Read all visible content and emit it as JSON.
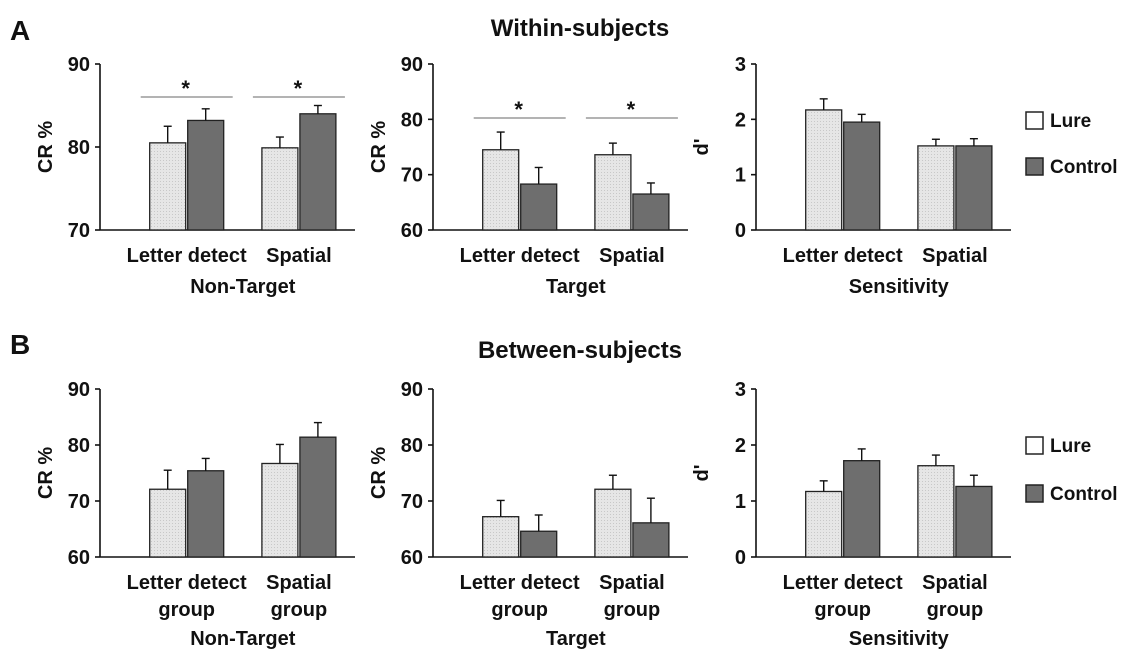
{
  "figure": {
    "row_a": {
      "letter": "A",
      "title": "Within-subjects"
    },
    "row_b": {
      "letter": "B",
      "title": "Between-subjects"
    }
  },
  "legend": {
    "items": [
      "Lure",
      "Control"
    ]
  },
  "colors": {
    "lure_fill": "#e3e3e3",
    "control_fill": "#6e6e6e",
    "bar_stroke": "#222222",
    "sig_line": "#9a9a9a"
  },
  "chart_data": [
    {
      "id": "A1",
      "type": "bar",
      "xlabel": "Non-Target",
      "ylabel": "CR %",
      "ylim": [
        70,
        90
      ],
      "yticks": [
        70,
        80,
        90
      ],
      "categories": [
        "Letter detect",
        "Spatial"
      ],
      "series": [
        {
          "name": "Lure",
          "values": [
            80.5,
            79.9
          ],
          "errors": [
            2.0,
            1.3
          ]
        },
        {
          "name": "Control",
          "values": [
            83.2,
            84.0
          ],
          "errors": [
            1.4,
            1.0
          ]
        }
      ],
      "significance": [
        "*",
        "*"
      ]
    },
    {
      "id": "A2",
      "type": "bar",
      "xlabel": "Target",
      "ylabel": "CR %",
      "ylim": [
        60,
        90
      ],
      "yticks": [
        60,
        70,
        80,
        90
      ],
      "categories": [
        "Letter detect",
        "Spatial"
      ],
      "series": [
        {
          "name": "Lure",
          "values": [
            74.5,
            73.6
          ],
          "errors": [
            3.2,
            2.1
          ]
        },
        {
          "name": "Control",
          "values": [
            68.3,
            66.5
          ],
          "errors": [
            3.0,
            2.0
          ]
        }
      ],
      "significance": [
        "*",
        "*"
      ]
    },
    {
      "id": "A3",
      "type": "bar",
      "xlabel": "Sensitivity",
      "ylabel": "d'",
      "ylim": [
        0,
        3
      ],
      "yticks": [
        0,
        1,
        2,
        3
      ],
      "categories": [
        "Letter detect",
        "Spatial"
      ],
      "series": [
        {
          "name": "Lure",
          "values": [
            2.17,
            1.52
          ],
          "errors": [
            0.2,
            0.12
          ]
        },
        {
          "name": "Control",
          "values": [
            1.95,
            1.52
          ],
          "errors": [
            0.14,
            0.13
          ]
        }
      ],
      "significance": []
    },
    {
      "id": "B1",
      "type": "bar",
      "xlabel": "Non-Target",
      "ylabel": "CR %",
      "ylim": [
        60,
        90
      ],
      "yticks": [
        60,
        70,
        80,
        90
      ],
      "categories": [
        "Letter detect\ngroup",
        "Spatial\ngroup"
      ],
      "series": [
        {
          "name": "Lure",
          "values": [
            72.1,
            76.7
          ],
          "errors": [
            3.4,
            3.4
          ]
        },
        {
          "name": "Control",
          "values": [
            75.4,
            81.4
          ],
          "errors": [
            2.2,
            2.6
          ]
        }
      ],
      "significance": []
    },
    {
      "id": "B2",
      "type": "bar",
      "xlabel": "Target",
      "ylabel": "CR %",
      "ylim": [
        60,
        90
      ],
      "yticks": [
        60,
        70,
        80,
        90
      ],
      "categories": [
        "Letter detect\ngroup",
        "Spatial\ngroup"
      ],
      "series": [
        {
          "name": "Lure",
          "values": [
            67.2,
            72.1
          ],
          "errors": [
            2.9,
            2.5
          ]
        },
        {
          "name": "Control",
          "values": [
            64.6,
            66.1
          ],
          "errors": [
            2.9,
            4.4
          ]
        }
      ],
      "significance": []
    },
    {
      "id": "B3",
      "type": "bar",
      "xlabel": "Sensitivity",
      "ylabel": "d'",
      "ylim": [
        0,
        3
      ],
      "yticks": [
        0,
        1,
        2,
        3
      ],
      "categories": [
        "Letter detect\ngroup",
        "Spatial\ngroup"
      ],
      "series": [
        {
          "name": "Lure",
          "values": [
            1.17,
            1.63
          ],
          "errors": [
            0.19,
            0.19
          ]
        },
        {
          "name": "Control",
          "values": [
            1.72,
            1.26
          ],
          "errors": [
            0.21,
            0.2
          ]
        }
      ],
      "significance": []
    }
  ]
}
